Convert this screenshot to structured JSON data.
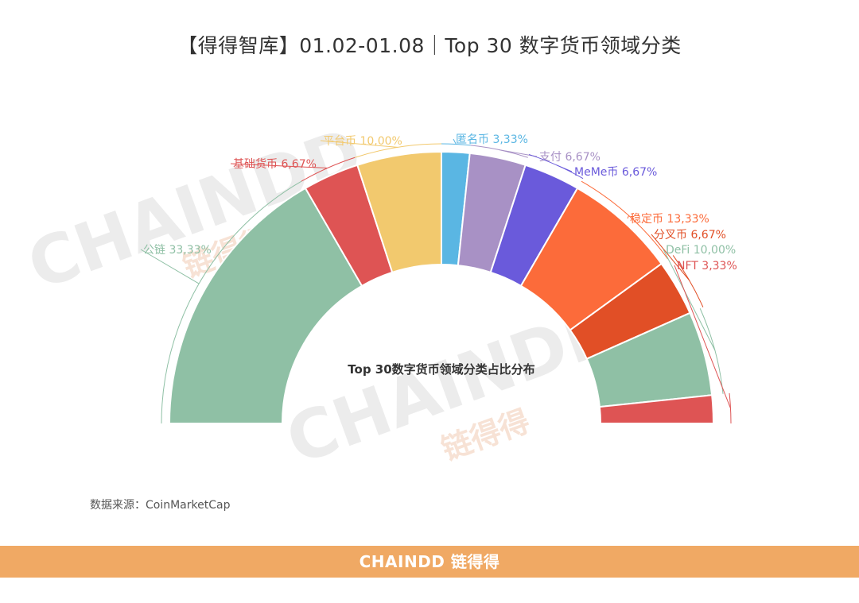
{
  "title": "【得得智库】01.02-01.08｜Top 30 数字货币领域分类",
  "source": "数据来源：CoinMarketCap",
  "watermark": {
    "latin": "CHAINDD",
    "chinese": "链得得"
  },
  "footer": {
    "brand": "CHAINDD 链得得"
  },
  "chart_data": {
    "type": "pie",
    "subtype": "half-donut",
    "center_label": "Top 30数字货币领域分类占比分布",
    "legend": "none",
    "slices": [
      {
        "name": "公链",
        "value": 33.33,
        "label": "公链 33,33%",
        "color": "#8fc0a5",
        "label_color": "#8fc0a5"
      },
      {
        "name": "基础货币",
        "value": 6.67,
        "label": "基础货币 6,67%",
        "color": "#de5454",
        "label_color": "#de5454"
      },
      {
        "name": "平台币",
        "value": 10.0,
        "label": "平台币 10,00%",
        "color": "#f2c96e",
        "label_color": "#f2c96e"
      },
      {
        "name": "匿名币",
        "value": 3.33,
        "label": "匿名币 3,33%",
        "color": "#5ab6e3",
        "label_color": "#5ab6e3"
      },
      {
        "name": "支付",
        "value": 6.67,
        "label": "支付 6,67%",
        "color": "#a891c5",
        "label_color": "#a891c5"
      },
      {
        "name": "MeMe币",
        "value": 6.67,
        "label": "MeMe币 6,67%",
        "color": "#6a5adb",
        "label_color": "#6a5adb"
      },
      {
        "name": "稳定币",
        "value": 13.33,
        "label": "稳定币 13,33%",
        "color": "#fc6b3a",
        "label_color": "#fc6b3a"
      },
      {
        "name": "分叉币",
        "value": 6.67,
        "label": "分叉币 6,67%",
        "color": "#e14f26",
        "label_color": "#e14f26"
      },
      {
        "name": "DeFi",
        "value": 10.0,
        "label": "DeFi 10,00%",
        "color": "#8fc0a5",
        "label_color": "#8fc0a5"
      },
      {
        "name": "NFT",
        "value": 3.33,
        "label": "NFT 3,33%",
        "color": "#de5454",
        "label_color": "#de5454"
      }
    ]
  }
}
